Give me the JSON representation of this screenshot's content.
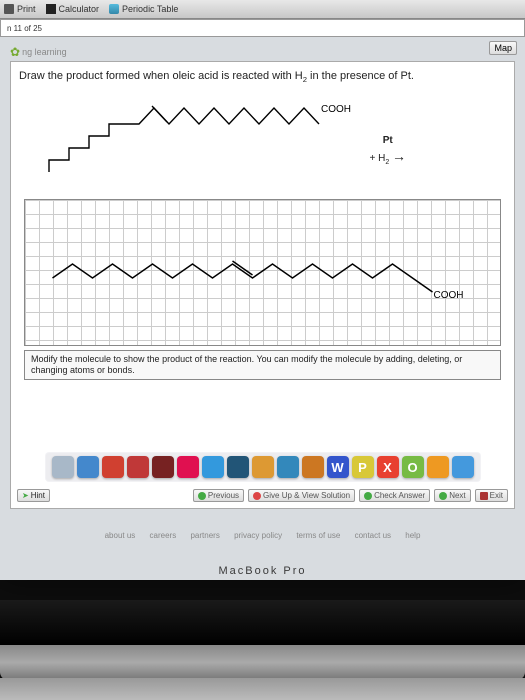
{
  "toolbar": {
    "print": "Print",
    "calculator": "Calculator",
    "periodic_table": "Periodic Table",
    "progress": "n 11 of 25",
    "map": "Map"
  },
  "branding": "ng learning",
  "question": {
    "text_a": "Draw the product formed when oleic acid is reacted with H",
    "text_b": " in the presence of Pt.",
    "sub": "2"
  },
  "reaction": {
    "cooh": "COOH",
    "plus_h2_a": "+ H",
    "plus_h2_sub": "2",
    "pt": "Pt",
    "cooh2": "COOH"
  },
  "instruction": "Modify the molecule to show the product of the reaction. You can modify the molecule by adding, deleting, or changing atoms or bonds.",
  "nav": {
    "hint": "Hint",
    "previous": "Previous",
    "giveup": "Give Up & View Solution",
    "check": "Check Answer",
    "next": "Next",
    "exit": "Exit"
  },
  "footer": {
    "about": "about us",
    "careers": "careers",
    "partners": "partners",
    "privacy": "privacy policy",
    "terms": "terms of use",
    "contact": "contact us",
    "help": "help"
  },
  "dock_colors": [
    "#a8b8c8",
    "#4488cc",
    "#d04030",
    "#c03838",
    "#772222",
    "#e01050",
    "#3399dd",
    "#225577",
    "#dd9933",
    "#3388bb",
    "#cc7722",
    "#3355cc",
    "#d8c838",
    "#e84030",
    "#77bb44",
    "#ee9922",
    "#4499dd"
  ],
  "dock_letters": [
    "",
    "",
    "",
    "",
    "",
    "",
    "",
    "",
    "",
    "",
    "",
    "W",
    "P",
    "X",
    "O",
    "",
    ""
  ],
  "macbook": "MacBook Pro"
}
